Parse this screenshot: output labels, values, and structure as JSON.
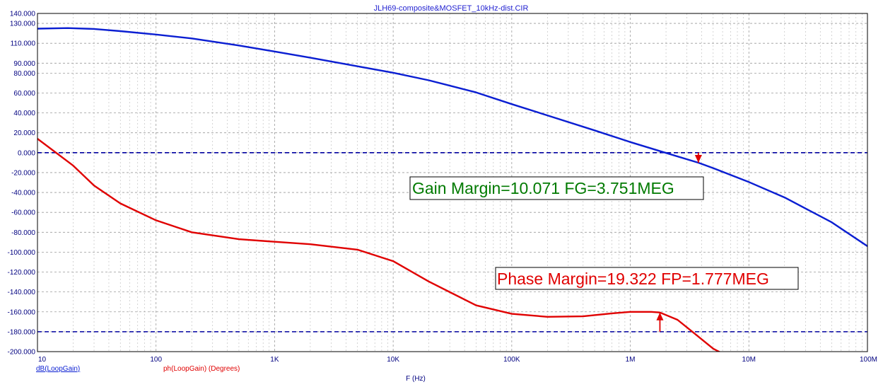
{
  "chart_data": {
    "type": "line",
    "title": "JLH69-composite&MOSFET_10kHz-dist.CIR",
    "xlabel": "F (Hz)",
    "xscale": "log",
    "xlim": [
      10,
      100000000
    ],
    "ylim": [
      -200,
      140
    ],
    "grid": true,
    "x_tick_labels": [
      "10",
      "100",
      "1K",
      "10K",
      "100K",
      "1M",
      "10M",
      "100M"
    ],
    "y_tick_labels": [
      "140.000",
      "130.000",
      "110.000",
      "90.000",
      "80.000",
      "60.000",
      "40.000",
      "20.000",
      "0.000",
      "-20.000",
      "-40.000",
      "-60.000",
      "-80.000",
      "-100.000",
      "-120.000",
      "-140.000",
      "-160.000",
      "-180.000",
      "-200.000"
    ],
    "y_tick_values": [
      140,
      130,
      110,
      90,
      80,
      60,
      40,
      20,
      0,
      -20,
      -40,
      -60,
      -80,
      -100,
      -120,
      -140,
      -160,
      -180,
      -200
    ],
    "reference_lines": [
      0,
      -180
    ],
    "series": [
      {
        "name": "dB(LoopGain)",
        "color": "#0a1ed2",
        "x": [
          10,
          18,
          30,
          50,
          100,
          200,
          500,
          1000,
          2000,
          5000,
          10000,
          20000,
          50000,
          100000,
          200000,
          500000,
          1000000,
          2000000,
          3751000,
          5000000,
          10000000,
          20000000,
          50000000,
          100000000
        ],
        "y": [
          124.7,
          125.3,
          124.4,
          122.2,
          118.8,
          114.9,
          107.8,
          101.7,
          95.5,
          86.9,
          80.4,
          72.8,
          60.6,
          48.8,
          37.5,
          22.4,
          10.7,
          -0.3,
          -10.1,
          -15.5,
          -29.5,
          -45.0,
          -70.0,
          -94.0
        ]
      },
      {
        "name": "ph(LoopGain) (Degrees)",
        "color": "#e00000",
        "x": [
          10,
          20,
          30,
          50,
          100,
          200,
          500,
          1000,
          2000,
          5000,
          10000,
          20000,
          50000,
          100000,
          200000,
          400000,
          700000,
          1000000,
          1500000,
          1777000,
          2500000,
          3500000,
          5000000,
          5800000
        ],
        "y": [
          14.0,
          -13.0,
          -33.0,
          -51.0,
          -68.0,
          -80.0,
          -87.0,
          -89.5,
          -92.0,
          -97.5,
          -109.0,
          -129.5,
          -153.5,
          -162.0,
          -165.0,
          -164.5,
          -161.5,
          -160.0,
          -160.0,
          -160.7,
          -168.0,
          -182.0,
          -197.0,
          -201.0
        ]
      }
    ],
    "annotations": {
      "gain_margin": "Gain Margin=10.071 FG=3.751MEG",
      "phase_margin": "Phase Margin=19.322 FP=1.777MEG"
    },
    "markers": [
      {
        "series": "dB(LoopGain)",
        "x": 3751000,
        "y": -10.071,
        "ref": 0,
        "color": "#e00000"
      },
      {
        "series": "ph(LoopGain) (Degrees)",
        "x": 1777000,
        "y": -160.678,
        "ref": -180,
        "color": "#e00000"
      }
    ]
  }
}
